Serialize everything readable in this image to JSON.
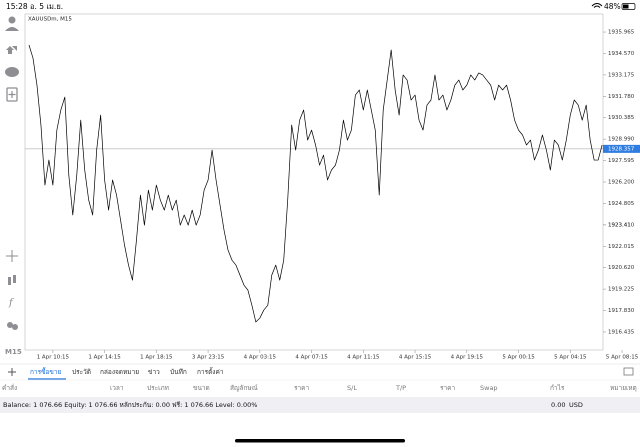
{
  "status_bar": {
    "time": "15:28",
    "date": "อ. 5 เม.ย.",
    "battery": "48%"
  },
  "toolbar": {
    "timeframe": "M15"
  },
  "chart_data": {
    "type": "line",
    "title": "XAUUSDm, M15",
    "color": "#000000",
    "grid": false,
    "categories": [
      null,
      null,
      null,
      null,
      null,
      null,
      "1 Apr 10:15",
      null,
      null,
      null,
      null,
      null,
      null,
      null,
      null,
      null,
      null,
      null,
      null,
      "1 Apr 14:15",
      null,
      null,
      null,
      null,
      null,
      null,
      null,
      null,
      null,
      null,
      null,
      null,
      "1 Apr 18:15",
      null,
      null,
      null,
      null,
      null,
      null,
      null,
      null,
      null,
      null,
      null,
      null,
      "3 Apr 23:15",
      null,
      null,
      null,
      null,
      null,
      null,
      null,
      null,
      null,
      null,
      null,
      null,
      "4 Apr 03:15",
      null,
      null,
      null,
      null,
      null,
      null,
      null,
      null,
      null,
      null,
      null,
      null,
      "4 Apr 07:15",
      null,
      null,
      null,
      null,
      null,
      null,
      null,
      null,
      null,
      null,
      null,
      null,
      "4 Apr 11:15",
      null,
      null,
      null,
      null,
      null,
      null,
      null,
      null,
      null,
      null,
      null,
      null,
      "4 Apr 15:15",
      null,
      null,
      null,
      null,
      null,
      null,
      null,
      null,
      null,
      null,
      null,
      null,
      "4 Apr 19:15",
      null,
      null,
      null,
      null,
      null,
      null,
      null,
      null,
      null,
      null,
      null,
      null,
      "5 Apr 00:15",
      null,
      null,
      null,
      null,
      null,
      null,
      null,
      null,
      null,
      null,
      null,
      null,
      "5 Apr 04:15",
      null,
      null,
      null,
      null,
      null,
      null,
      null,
      null,
      null,
      null,
      null,
      null,
      "5 Apr 08:15"
    ],
    "values": [
      1935.12,
      1934.27,
      1932.51,
      1929.91,
      1926.0,
      1927.63,
      1926.0,
      1929.58,
      1930.89,
      1931.73,
      1926.65,
      1924.05,
      1926.65,
      1930.23,
      1926.98,
      1925.02,
      1924.05,
      1928.28,
      1930.56,
      1926.33,
      1924.37,
      1926.33,
      1925.35,
      1923.72,
      1922.09,
      1920.79,
      1919.81,
      1922.42,
      1925.35,
      1923.39,
      1925.67,
      1924.37,
      1926.0,
      1925.02,
      1924.37,
      1925.35,
      1924.37,
      1925.02,
      1923.39,
      1924.05,
      1923.39,
      1924.37,
      1923.39,
      1924.05,
      1925.67,
      1926.33,
      1928.28,
      1926.33,
      1924.7,
      1923.07,
      1921.77,
      1921.11,
      1920.79,
      1920.14,
      1919.49,
      1919.16,
      1918.18,
      1917.08,
      1917.34,
      1917.86,
      1918.18,
      1920.14,
      1920.79,
      1919.81,
      1921.11,
      1925.02,
      1929.91,
      1928.28,
      1930.23,
      1930.89,
      1928.93,
      1929.58,
      1928.61,
      1927.3,
      1927.95,
      1926.33,
      1926.98,
      1927.3,
      1928.28,
      1930.23,
      1928.93,
      1929.58,
      1931.86,
      1932.19,
      1930.89,
      1932.19,
      1930.89,
      1929.58,
      1925.35,
      1930.89,
      1932.84,
      1934.8,
      1932.19,
      1930.56,
      1933.17,
      1932.84,
      1931.54,
      1931.86,
      1930.23,
      1929.58,
      1931.21,
      1931.54,
      1933.17,
      1931.54,
      1931.86,
      1930.89,
      1931.54,
      1932.51,
      1932.84,
      1932.19,
      1932.51,
      1933.17,
      1932.84,
      1933.3,
      1933.17,
      1932.84,
      1932.51,
      1931.54,
      1932.51,
      1932.19,
      1932.51,
      1931.54,
      1930.23,
      1929.58,
      1929.26,
      1928.61,
      1928.93,
      1927.63,
      1928.28,
      1929.26,
      1928.28,
      1926.98,
      1928.93,
      1928.61,
      1927.63,
      1928.93,
      1930.56,
      1931.54,
      1931.21,
      1930.23,
      1931.21,
      1928.93,
      1927.63,
      1927.63,
      1928.61,
      null,
      null,
      null,
      null,
      null
    ],
    "current_price": 1928.357,
    "ylim": [
      1915.26,
      1937.14
    ],
    "yticks": [
      1935.965,
      {
        "value": 1934.57,
        "label": "1934.570"
      },
      1933.175,
      {
        "value": 1931.78,
        "label": "1931.780"
      },
      1930.385,
      {
        "value": 1928.99,
        "label": "1928.990"
      },
      1927.595,
      {
        "value": 1926.2,
        "label": "1926.200"
      },
      1924.805,
      1923.41,
      {
        "value": 1923.41,
        "label": "1923.410"
      },
      1922.015,
      {
        "value": 1920.62,
        "label": "1920.620"
      },
      1919.225,
      {
        "value": 1917.83,
        "label": "1917.830"
      },
      1916.435
    ]
  },
  "tabs": [
    "การซื้อขาย",
    "ประวัติ",
    "กล่องจดหมาย",
    "ข่าว",
    "บันทึก",
    "การตั้งค่า"
  ],
  "columns": [
    "คำสั่ง",
    "เวลา",
    "ประเภท",
    "ขนาด",
    "สัญลักษณ์",
    "ราคา",
    "S/L",
    "T/P",
    "ราคา",
    "Swap",
    "กำไร",
    "หมายเหตุ"
  ],
  "account": {
    "summary": "Balance: 1 076.66 Equity: 1 076.66 หลักประกัน: 0.00 ฟรี: 1 076.66 Level: 0.00%",
    "profit": "0.00",
    "currency": "USD"
  }
}
